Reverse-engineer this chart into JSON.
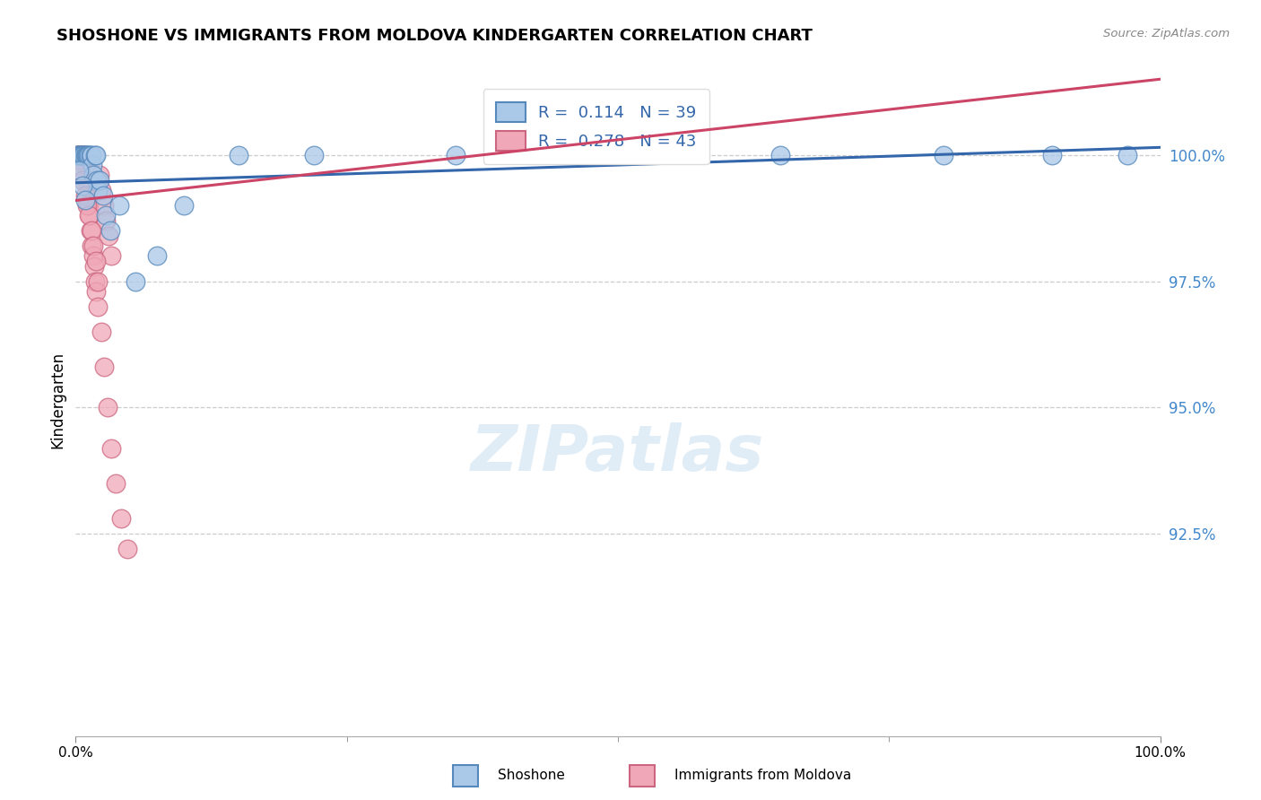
{
  "title": "SHOSHONE VS IMMIGRANTS FROM MOLDOVA KINDERGARTEN CORRELATION CHART",
  "source_text": "Source: ZipAtlas.com",
  "ylabel": "Kindergarten",
  "ytick_values": [
    92.5,
    95.0,
    97.5,
    100.0
  ],
  "xlim": [
    0.0,
    100.0
  ],
  "ylim": [
    88.5,
    101.8
  ],
  "legend_r1": "R =  0.114",
  "legend_n1": "N = 39",
  "legend_r2": "R =  0.278",
  "legend_n2": "N = 43",
  "shoshone_color": "#aac8e8",
  "moldova_color": "#f0a8b8",
  "shoshone_edge": "#5588bb",
  "moldova_edge": "#cc6680",
  "trend_blue": "#3366aa",
  "trend_red": "#cc4466",
  "shoshone_x": [
    0.15,
    0.25,
    0.35,
    0.45,
    0.55,
    0.65,
    0.75,
    0.85,
    0.95,
    1.05,
    1.15,
    1.25,
    1.35,
    1.45,
    1.55,
    1.65,
    1.75,
    1.85,
    1.95,
    2.05,
    2.2,
    2.5,
    2.8,
    3.2,
    4.0,
    5.5,
    7.5,
    10.0,
    15.0,
    22.0,
    35.0,
    50.0,
    65.0,
    80.0,
    90.0,
    97.0,
    0.3,
    0.6,
    0.9
  ],
  "shoshone_y": [
    100.0,
    100.0,
    100.0,
    100.0,
    100.0,
    100.0,
    100.0,
    100.0,
    100.0,
    100.0,
    100.0,
    100.0,
    100.0,
    100.0,
    99.8,
    99.6,
    100.0,
    100.0,
    99.5,
    99.3,
    99.5,
    99.2,
    98.8,
    98.5,
    99.0,
    97.5,
    98.0,
    99.0,
    100.0,
    100.0,
    100.0,
    100.0,
    100.0,
    100.0,
    100.0,
    100.0,
    99.7,
    99.4,
    99.1
  ],
  "moldova_x": [
    0.1,
    0.2,
    0.3,
    0.4,
    0.5,
    0.6,
    0.7,
    0.8,
    0.9,
    1.0,
    1.1,
    1.2,
    1.3,
    1.4,
    1.5,
    1.6,
    1.7,
    1.8,
    1.9,
    2.0,
    2.2,
    2.4,
    2.6,
    2.8,
    3.0,
    3.3,
    0.25,
    0.45,
    0.65,
    0.85,
    1.05,
    1.25,
    1.45,
    1.65,
    1.85,
    2.05,
    2.35,
    2.65,
    2.95,
    3.3,
    3.7,
    4.2,
    4.8
  ],
  "moldova_y": [
    100.0,
    100.0,
    100.0,
    100.0,
    100.0,
    100.0,
    100.0,
    100.0,
    99.8,
    99.5,
    99.2,
    99.0,
    98.8,
    98.5,
    98.2,
    98.0,
    97.8,
    97.5,
    97.3,
    97.0,
    99.6,
    99.3,
    99.0,
    98.7,
    98.4,
    98.0,
    99.9,
    99.7,
    99.5,
    99.2,
    99.0,
    98.8,
    98.5,
    98.2,
    97.9,
    97.5,
    96.5,
    95.8,
    95.0,
    94.2,
    93.5,
    92.8,
    92.2
  ],
  "blue_trend_x0": 0.0,
  "blue_trend_y0": 99.45,
  "blue_trend_x1": 100.0,
  "blue_trend_y1": 100.15,
  "red_trend_x0": 0.0,
  "red_trend_y0": 99.1,
  "red_trend_x1": 100.0,
  "red_trend_y1": 101.5,
  "watermark_text": "ZIPatlas",
  "watermark_fontsize": 52,
  "bottom_label1": "Shoshone",
  "bottom_label2": "Immigrants from Moldova"
}
